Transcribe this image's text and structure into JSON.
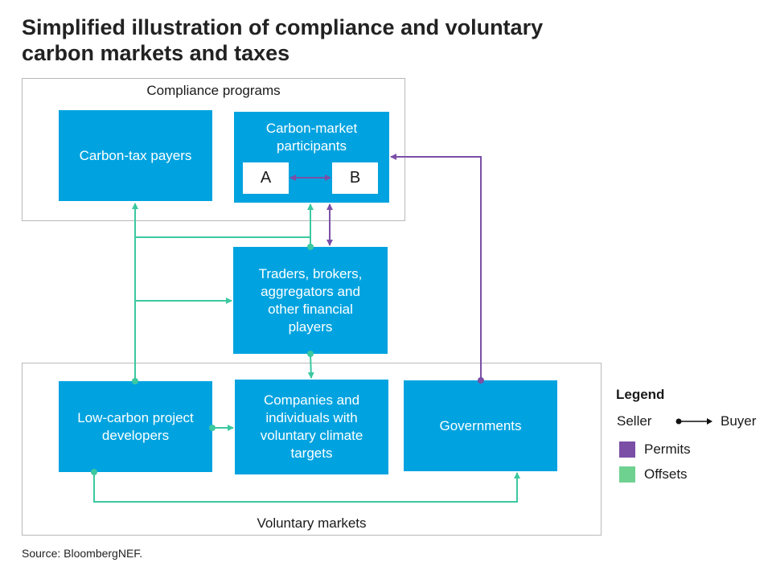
{
  "title": {
    "line1": "Simplified illustration of compliance and voluntary",
    "line2": "carbon markets and taxes"
  },
  "regions": {
    "compliance": "Compliance programs",
    "voluntary": "Voluntary markets"
  },
  "nodes": {
    "carbon_tax_payers": "Carbon-tax payers",
    "carbon_market_participants": "Carbon-market\nparticipants",
    "participant_a": "A",
    "participant_b": "B",
    "traders": "Traders, brokers,\naggregators and\nother financial\nplayers",
    "developers": "Low-carbon project\ndevelopers",
    "companies": "Companies and\nindividuals with\nvoluntary climate\ntargets",
    "governments": "Governments"
  },
  "legend": {
    "title": "Legend",
    "seller": "Seller",
    "buyer": "Buyer",
    "permits": "Permits",
    "offsets": "Offsets"
  },
  "colors": {
    "node": "#00a3e0",
    "permits": "#7b4fa6",
    "offsets": "#3cc8a0",
    "legend_offsets": "#6ed18f"
  },
  "source": "Source: BloombergNEF."
}
